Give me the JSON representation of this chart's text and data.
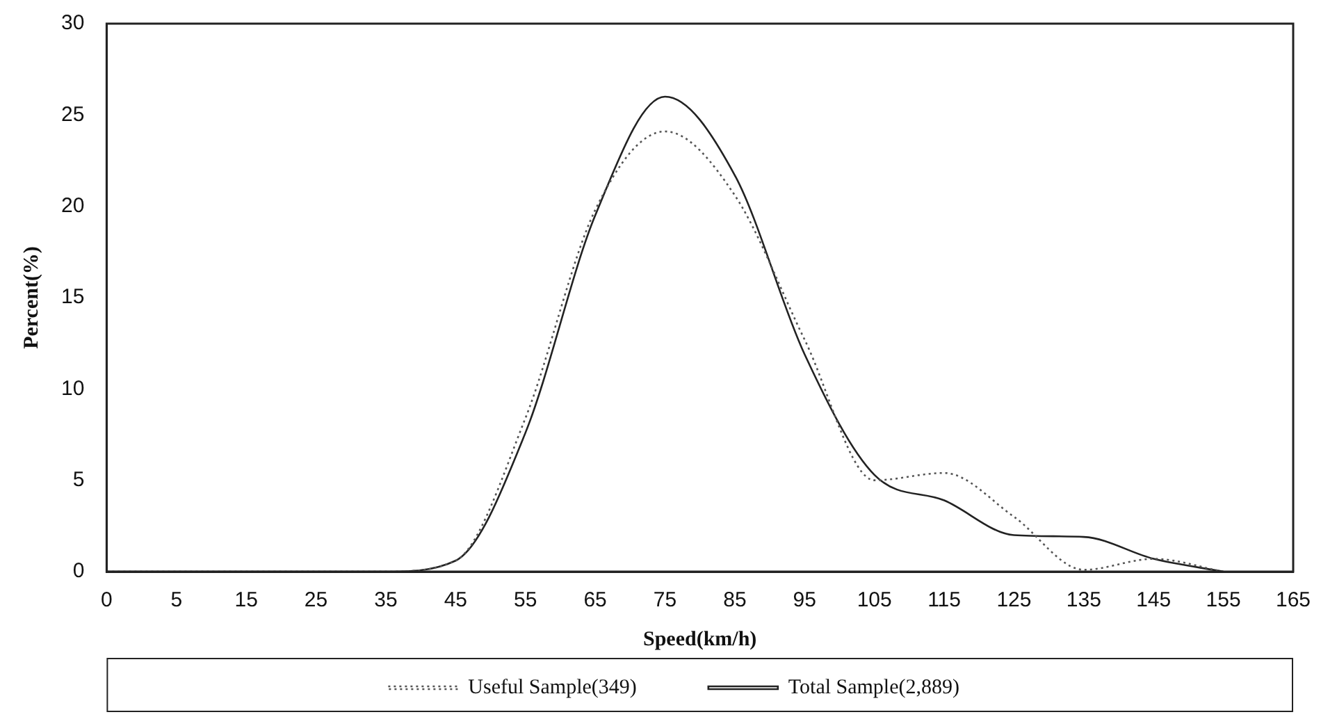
{
  "chart_data": {
    "type": "line",
    "xlabel": "Speed(km/h)",
    "ylabel": "Percent(%)",
    "categories": [
      "0",
      "5",
      "15",
      "25",
      "35",
      "45",
      "55",
      "65",
      "75",
      "85",
      "95",
      "105",
      "115",
      "125",
      "135",
      "145",
      "155",
      "165"
    ],
    "series": [
      {
        "name": "Useful Sample(349)",
        "color": "#555555",
        "line_style": "dotted",
        "values": [
          0,
          0,
          0,
          0,
          0,
          0.6,
          8.4,
          19.8,
          24.1,
          20.6,
          12.7,
          5.0,
          5.4,
          3.0,
          0.1,
          0.7,
          0,
          null
        ]
      },
      {
        "name": "Total Sample(2,889)",
        "color": "#222222",
        "line_style": "solid",
        "values": [
          0,
          0,
          0,
          0,
          0,
          0.6,
          7.6,
          19.5,
          26.0,
          21.7,
          11.9,
          5.3,
          3.9,
          2.0,
          1.9,
          0.7,
          0,
          null
        ]
      }
    ],
    "ylim": [
      0,
      30
    ],
    "yticks": [
      0,
      5,
      10,
      15,
      20,
      25,
      30
    ],
    "grid": false,
    "legend": "bottom",
    "marker": "none"
  }
}
